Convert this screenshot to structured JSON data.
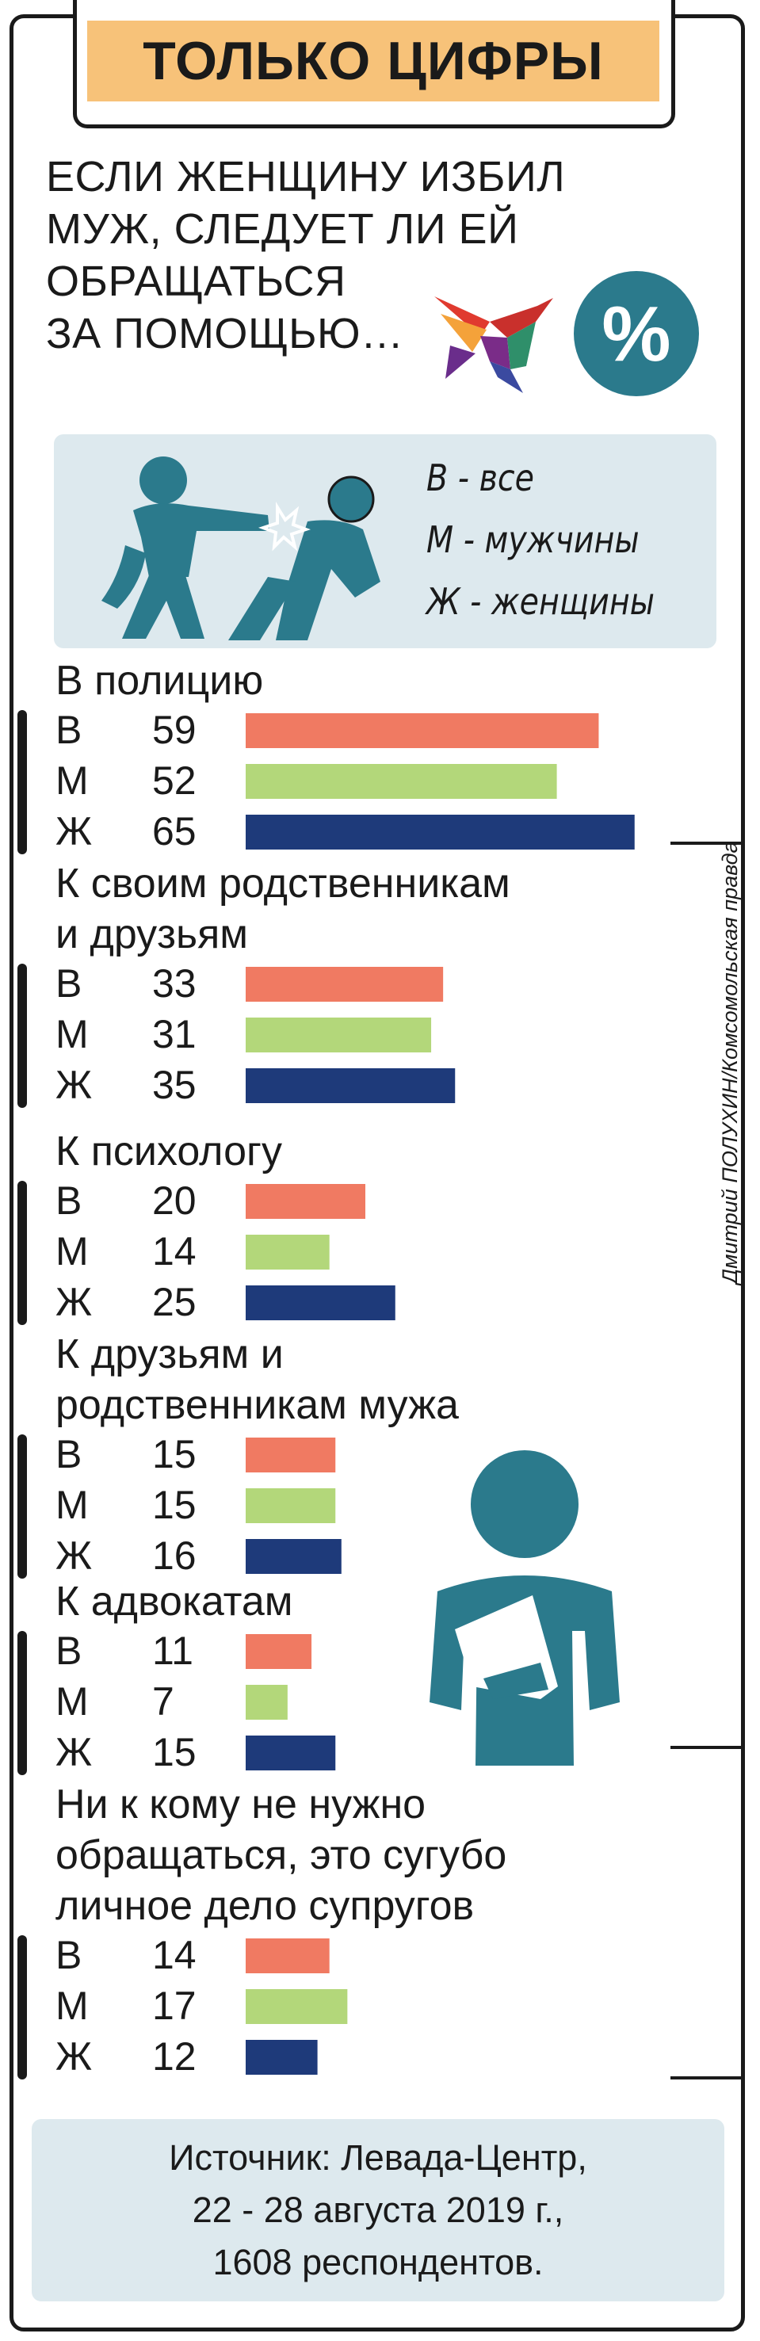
{
  "header": {
    "title": "ТОЛЬКО ЦИФРЫ"
  },
  "question": {
    "lines": [
      "ЕСЛИ ЖЕНЩИНУ ИЗБИЛ",
      "МУЖ, СЛЕДУЕТ ЛИ ЕЙ",
      "ОБРАЩАТЬСЯ",
      "ЗА ПОМОЩЬЮ…"
    ]
  },
  "badge": {
    "symbol": "%"
  },
  "legend": {
    "items": [
      "В - все",
      "М - мужчины",
      "Ж - женщины"
    ]
  },
  "credit": "Дмитрий ПОЛУХИН/Комсомольская правда",
  "source": {
    "lines": [
      "Источник: Левада-Центр,",
      "22 - 28 августа 2019 г.,",
      "1608 респондентов."
    ]
  },
  "colors": {
    "all": "#f07a62",
    "men": "#b3d77a",
    "women": "#1e3a7a",
    "accent": "#2b7a8c",
    "header_bg": "#f7c279",
    "panel_bg": "#dde9ee"
  },
  "chart_data": {
    "type": "bar",
    "orientation": "horizontal",
    "unit": "%",
    "series_labels": [
      "В",
      "М",
      "Ж"
    ],
    "groups": [
      {
        "title_lines": [
          "В полицию"
        ],
        "values": [
          59,
          52,
          65
        ]
      },
      {
        "title_lines": [
          "К своим родственникам",
          "и друзьям"
        ],
        "values": [
          33,
          31,
          35
        ]
      },
      {
        "title_lines": [
          "К психологу"
        ],
        "values": [
          20,
          14,
          25
        ]
      },
      {
        "title_lines": [
          "К друзьям и",
          "родственникам мужа"
        ],
        "values": [
          15,
          15,
          16
        ]
      },
      {
        "title_lines": [
          "К адвокатам"
        ],
        "values": [
          11,
          7,
          15
        ]
      },
      {
        "title_lines": [
          "Ни к кому не нужно",
          "обращаться, это сугубо",
          "личное дело супругов"
        ],
        "values": [
          14,
          17,
          12
        ]
      }
    ]
  }
}
